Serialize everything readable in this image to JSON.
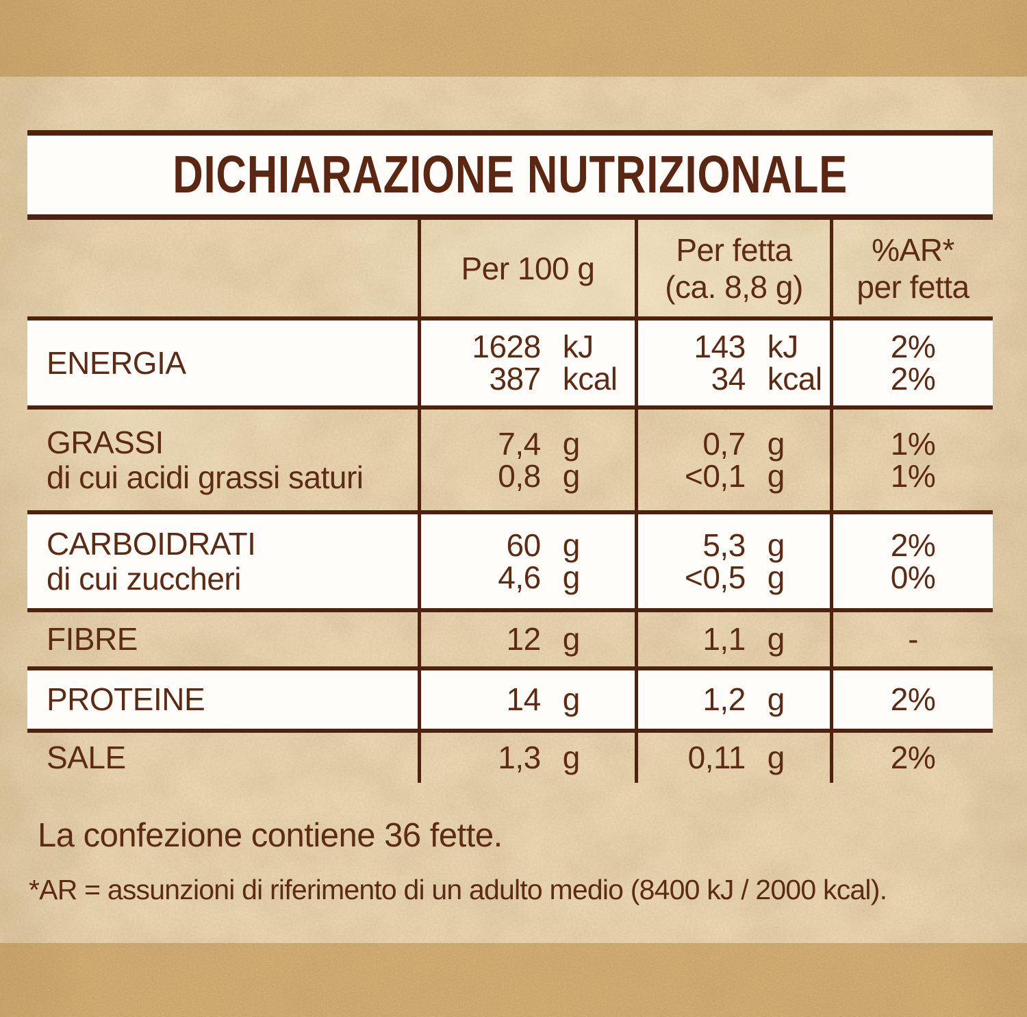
{
  "title": "DICHIARAZIONE NUTRIZIONALE",
  "table": {
    "header": {
      "per_100g": "Per 100 g",
      "per_fetta_line1": "Per fetta",
      "per_fetta_line2": "(ca. 8,8 g)",
      "ar_line1": "%AR*",
      "ar_line2": "per fetta"
    },
    "rows": [
      {
        "id": "energia",
        "bg": "white",
        "label_lines": [
          "ENERGIA"
        ],
        "per_100g": [
          {
            "value": "1628",
            "unit": "kJ"
          },
          {
            "value": "387",
            "unit": "kcal"
          }
        ],
        "per_fetta": [
          {
            "value": "143",
            "unit": "kJ"
          },
          {
            "value": "34",
            "unit": "kcal"
          }
        ],
        "ar": [
          "2%",
          "2%"
        ]
      },
      {
        "id": "grassi",
        "bg": "paper",
        "label_lines": [
          "GRASSI",
          "di cui acidi grassi saturi"
        ],
        "per_100g": [
          {
            "value": "7,4",
            "unit": "g"
          },
          {
            "value": "0,8",
            "unit": "g"
          }
        ],
        "per_fetta": [
          {
            "value": "0,7",
            "unit": "g"
          },
          {
            "value": "<0,1",
            "unit": "g"
          }
        ],
        "ar": [
          "1%",
          "1%"
        ]
      },
      {
        "id": "carboidrati",
        "bg": "white",
        "label_lines": [
          "CARBOIDRATI",
          "di cui zuccheri"
        ],
        "per_100g": [
          {
            "value": "60",
            "unit": "g"
          },
          {
            "value": "4,6",
            "unit": "g"
          }
        ],
        "per_fetta": [
          {
            "value": "5,3",
            "unit": "g"
          },
          {
            "value": "<0,5",
            "unit": "g"
          }
        ],
        "ar": [
          "2%",
          "0%"
        ]
      },
      {
        "id": "fibre",
        "bg": "paper",
        "label_lines": [
          "FIBRE"
        ],
        "per_100g": [
          {
            "value": "12",
            "unit": "g"
          }
        ],
        "per_fetta": [
          {
            "value": "1,1",
            "unit": "g"
          }
        ],
        "ar": [
          "-"
        ]
      },
      {
        "id": "proteine",
        "bg": "white",
        "label_lines": [
          "PROTEINE"
        ],
        "per_100g": [
          {
            "value": "14",
            "unit": "g"
          }
        ],
        "per_fetta": [
          {
            "value": "1,2",
            "unit": "g"
          }
        ],
        "ar": [
          "2%"
        ]
      },
      {
        "id": "sale",
        "bg": "paper",
        "label_lines": [
          "SALE"
        ],
        "per_100g": [
          {
            "value": "1,3",
            "unit": "g"
          }
        ],
        "per_fetta": [
          {
            "value": "0,11",
            "unit": "g"
          }
        ],
        "ar": [
          "2%"
        ]
      }
    ]
  },
  "footer": {
    "package_note": "La confezione contiene 36 fette.",
    "ar_note": "*AR = assunzioni di riferimento di un adulto medio (8400 kJ / 2000 kcal)."
  },
  "colors": {
    "text_brown": "#5d2a14",
    "line_brown": "#4e220f",
    "paper_light": "#e7d3ae",
    "paper_dark_band": "#cda76a",
    "row_white": "#fffdf9"
  }
}
